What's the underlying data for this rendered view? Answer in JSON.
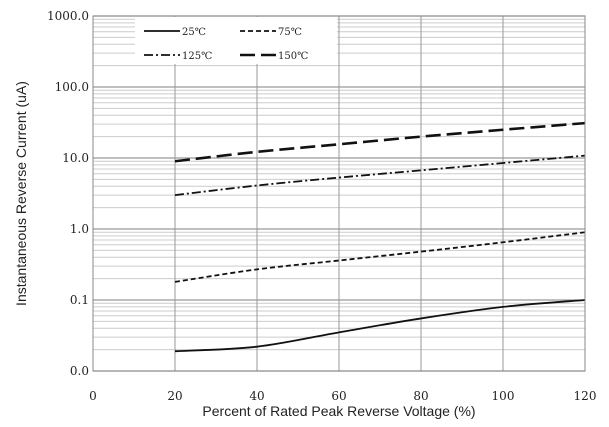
{
  "chart_data": {
    "type": "line",
    "xlabel": "Percent of  Rated Peak Reverse Voltage (%)",
    "ylabel": "Instantaneous Reverse Current (uA)",
    "xlim": [
      0,
      120
    ],
    "ylim": [
      0.01,
      1000
    ],
    "y_scale": "log",
    "grid": true,
    "legend_position": "top-left",
    "x_ticks": [
      0,
      20,
      40,
      60,
      80,
      100,
      120
    ],
    "y_ticks": [
      {
        "value": 0.01,
        "label": "0.0"
      },
      {
        "value": 0.1,
        "label": "0.1"
      },
      {
        "value": 1,
        "label": "1.0"
      },
      {
        "value": 10,
        "label": "10.0"
      },
      {
        "value": 100,
        "label": "100.0"
      },
      {
        "value": 1000,
        "label": "1000.0"
      }
    ],
    "x": [
      20,
      40,
      60,
      80,
      100,
      120
    ],
    "series": [
      {
        "name": "25℃",
        "style": "solid",
        "values": [
          0.019,
          0.022,
          0.035,
          0.055,
          0.08,
          0.1
        ]
      },
      {
        "name": "75℃",
        "style": "dashed",
        "values": [
          0.18,
          0.27,
          0.36,
          0.48,
          0.65,
          0.9
        ]
      },
      {
        "name": "125℃",
        "style": "dashdot",
        "values": [
          3.0,
          4.1,
          5.3,
          6.7,
          8.5,
          10.8
        ]
      },
      {
        "name": "150℃",
        "style": "longdash",
        "values": [
          9.0,
          12.2,
          15.6,
          20.0,
          25.0,
          31.0
        ]
      }
    ],
    "colors": {
      "line": "#111111",
      "grid_major": "#999999",
      "grid_minor": "#cccccc",
      "background": "#ffffff"
    }
  }
}
